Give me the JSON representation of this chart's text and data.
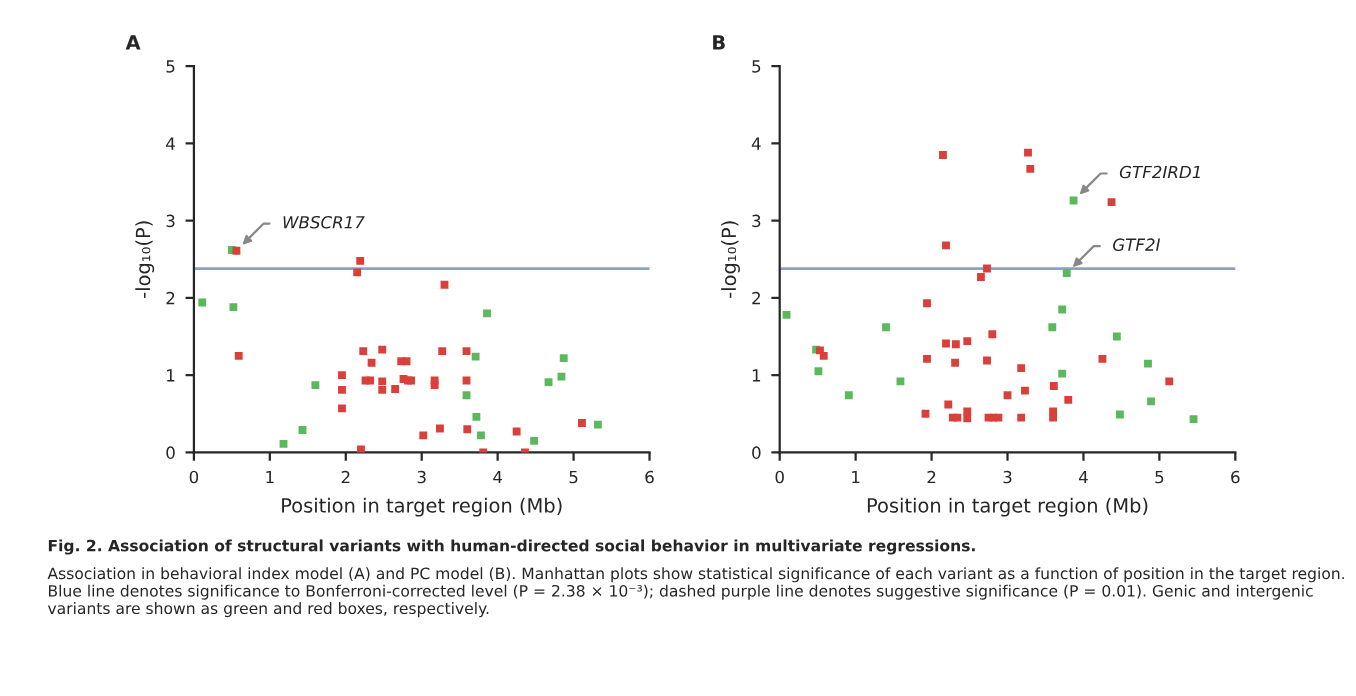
{
  "chart_data": [
    {
      "type": "scatter",
      "title": "A",
      "xlabel": "Position in target region (Mb)",
      "ylabel": "-log₁₀(P)",
      "xlim": [
        0,
        6
      ],
      "ylim": [
        0,
        5
      ],
      "xticks": [
        0,
        1,
        2,
        3,
        4,
        5,
        6
      ],
      "yticks": [
        0,
        1,
        2,
        3,
        4,
        5
      ],
      "grid": false,
      "legend": false,
      "marker": "square",
      "series": [
        {
          "color": "#5cb85c",
          "x": [
            0.5,
            0.11,
            0.52,
            1.18,
            1.43,
            1.6,
            3.86,
            3.71,
            3.59,
            3.72,
            3.78,
            4.48,
            4.67,
            4.84,
            4.87,
            5.32
          ],
          "values": [
            2.62,
            1.94,
            1.88,
            0.11,
            0.29,
            0.87,
            1.8,
            1.24,
            0.74,
            0.46,
            0.22,
            0.15,
            0.91,
            0.98,
            1.22,
            0.36
          ]
        },
        {
          "color": "#d9403a",
          "x": [
            0.56,
            0.59,
            2.19,
            2.15,
            3.3,
            1.95,
            1.95,
            1.95,
            2.23,
            2.34,
            2.32,
            2.26,
            2.48,
            2.48,
            2.48,
            2.65,
            2.73,
            2.8,
            2.76,
            2.82,
            2.86,
            3.17,
            3.17,
            3.27,
            3.24,
            3.02,
            2.2,
            3.59,
            3.59,
            3.6,
            3.81,
            4.25,
            4.36,
            5.11
          ],
          "values": [
            2.61,
            1.25,
            2.48,
            2.33,
            2.17,
            1.0,
            0.81,
            0.57,
            1.31,
            1.16,
            0.93,
            0.93,
            1.33,
            0.92,
            0.81,
            0.82,
            1.18,
            1.18,
            0.95,
            0.93,
            0.93,
            0.93,
            0.87,
            1.31,
            0.31,
            0.22,
            0.04,
            1.31,
            0.93,
            0.3,
            0.0,
            0.27,
            0.0,
            0.38
          ]
        }
      ],
      "ref_lines": [
        {
          "axis": "y",
          "value": 2.38,
          "color": "#8ca0c8",
          "line_style": "solid"
        }
      ],
      "annotations": [
        {
          "text": "WBSCR17",
          "x": 0.56,
          "y": 2.61
        },
        "Fig. 2. Association of structural variants with human-directed social behavior in multivariate regressions.",
        "Association in behavioral index model (A) and PC model (B). Manhattan plots show statistical significance of each variant as a function of position in the target region. Blue line denotes significance to Bonferroni-corrected level (P = 2.38 × 10⁻³); dashed purple line denotes suggestive significance (P = 0.01). Genic and intergenic variants are shown as green and red boxes, respectively."
      ]
    },
    {
      "type": "scatter",
      "title": "B",
      "xlabel": "Position in target region (Mb)",
      "ylabel": "-log₁₀(P)",
      "xlim": [
        0,
        6
      ],
      "ylim": [
        0,
        5
      ],
      "xticks": [
        0,
        1,
        2,
        3,
        4,
        5,
        6
      ],
      "yticks": [
        0,
        1,
        2,
        3,
        4,
        5
      ],
      "grid": false,
      "legend": false,
      "marker": "square",
      "series": [
        {
          "color": "#5cb85c",
          "x": [
            0.09,
            0.48,
            0.51,
            0.91,
            1.4,
            1.59,
            3.59,
            3.72,
            3.78,
            3.87,
            3.72,
            4.44,
            4.85,
            4.89,
            4.48,
            5.45
          ],
          "values": [
            1.78,
            1.33,
            1.05,
            0.74,
            1.62,
            0.92,
            1.62,
            1.85,
            2.32,
            3.26,
            1.02,
            1.5,
            1.15,
            0.66,
            0.49,
            0.43
          ]
        },
        {
          "color": "#d9403a",
          "x": [
            2.15,
            3.27,
            3.3,
            4.37,
            2.19,
            2.73,
            2.65,
            1.94,
            1.94,
            2.19,
            2.32,
            2.47,
            2.8,
            2.31,
            2.73,
            3.18,
            3.23,
            3.0,
            3.61,
            3.8,
            3.6,
            3.6,
            4.25,
            5.13,
            0.53,
            0.58,
            1.92,
            2.22,
            2.28,
            2.34,
            2.47,
            2.47,
            2.75,
            2.81,
            2.88,
            3.18
          ],
          "values": [
            3.85,
            3.88,
            3.67,
            3.24,
            2.68,
            2.38,
            2.27,
            1.93,
            1.21,
            1.41,
            1.4,
            1.44,
            1.53,
            1.16,
            1.19,
            1.09,
            0.8,
            0.74,
            0.86,
            0.68,
            0.53,
            0.45,
            1.21,
            0.92,
            1.32,
            1.25,
            0.5,
            0.62,
            0.45,
            0.45,
            0.53,
            0.44,
            0.45,
            0.45,
            0.45,
            0.45
          ]
        }
      ],
      "ref_lines": [
        {
          "axis": "y",
          "value": 2.38,
          "color": "#8ca0c8",
          "line_style": "solid"
        }
      ],
      "annotations": [
        {
          "text": "GTF2IRD1",
          "x": 3.87,
          "y": 3.26
        },
        {
          "text": "GTF2I",
          "x": 3.78,
          "y": 2.32
        }
      ]
    }
  ]
}
